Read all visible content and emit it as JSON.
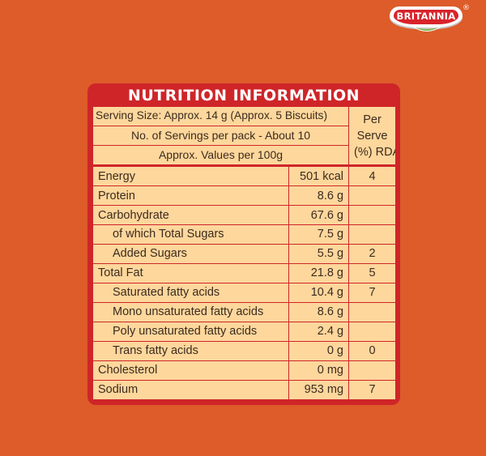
{
  "brand": {
    "name": "BRITANNIA",
    "registered_mark": "®",
    "colors": {
      "background": "#dd5c2a",
      "panel_red": "#cf2529",
      "table_fill": "#fdd79c"
    }
  },
  "nutrition": {
    "title": "NUTRITION INFORMATION",
    "serving_size": "Serving Size: Approx. 14 g (Approx. 5 Biscuits)",
    "servings_per_pack": "No. of Servings per pack - About 10",
    "values_basis": "Approx. Values per 100g",
    "per_serve_header": {
      "line1": "Per",
      "line2": "Serve",
      "line3": "(%) RDA"
    },
    "rows": [
      {
        "name": "Energy",
        "value": "501 kcal",
        "rda": "4"
      },
      {
        "name": "Protein",
        "value": "8.6 g",
        "rda": ""
      },
      {
        "name": "Carbohydrate",
        "value": "67.6 g",
        "rda": ""
      },
      {
        "name": "of which Total Sugars",
        "value": "7.5 g",
        "rda": ""
      },
      {
        "name": "Added Sugars",
        "value": "5.5 g",
        "rda": "2"
      },
      {
        "name": "Total Fat",
        "value": "21.8 g",
        "rda": "5"
      },
      {
        "name": "Saturated fatty acids",
        "value": "10.4 g",
        "rda": "7"
      },
      {
        "name": "Mono unsaturated fatty acids",
        "value": "8.6 g",
        "rda": ""
      },
      {
        "name": "Poly unsaturated fatty acids",
        "value": "2.4 g",
        "rda": ""
      },
      {
        "name": "Trans fatty acids",
        "value": "0 g",
        "rda": "0"
      },
      {
        "name": "Cholesterol",
        "value": "0 mg",
        "rda": ""
      },
      {
        "name": "Sodium",
        "value": "953 mg",
        "rda": "7"
      }
    ]
  }
}
